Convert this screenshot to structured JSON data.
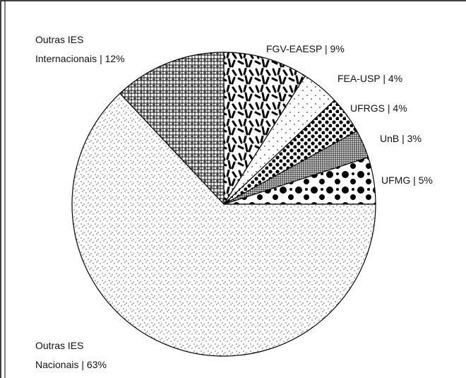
{
  "chart_data": {
    "type": "pie",
    "categories": [
      "UFMG",
      "UnB",
      "UFRGS",
      "FEA-USP",
      "FGV-EAESP",
      "Outras IES Internacionais",
      "Outras IES Nacionais"
    ],
    "values": [
      5,
      3,
      4,
      4,
      9,
      12,
      63
    ],
    "value_labels": [
      "5%",
      "3%",
      "4%",
      "4%",
      "9%",
      "12%",
      "63%"
    ],
    "label_separator": "|"
  }
}
